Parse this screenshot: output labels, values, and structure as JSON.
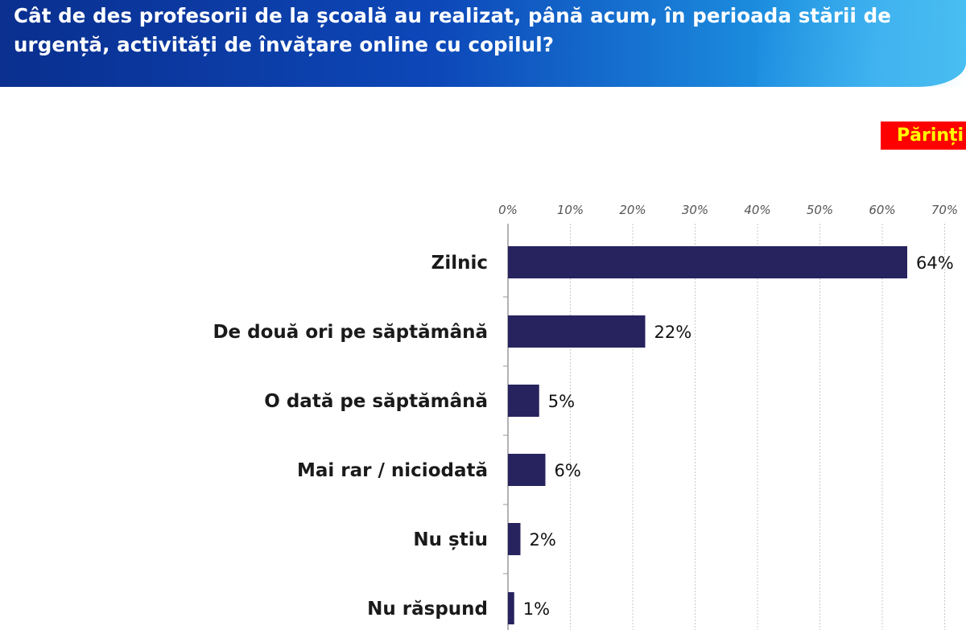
{
  "header": {
    "title": "Cât de des profesorii de la școală au realizat, până acum, în perioada stării de urgență, activități de învățare online cu copilul?"
  },
  "badge": {
    "label": "Părinți"
  },
  "colors": {
    "bar": "#26235e",
    "header_start": "#0a2f8f",
    "header_end": "#29b3ee",
    "badge_bg": "#ff0000",
    "badge_text": "#ffff00"
  },
  "chart_data": {
    "type": "bar",
    "orientation": "horizontal",
    "categories": [
      "Zilnic",
      "De două ori pe săptămână",
      "O dată pe săptămână",
      "Mai rar / niciodată",
      "Nu știu",
      "Nu răspund"
    ],
    "values": [
      64,
      22,
      5,
      6,
      2,
      1
    ],
    "value_labels": [
      "64%",
      "22%",
      "5%",
      "6%",
      "2%",
      "1%"
    ],
    "xlim": [
      0,
      70
    ],
    "x_ticks": [
      "0%",
      "10%",
      "20%",
      "30%",
      "40%",
      "50%",
      "60%",
      "70%"
    ],
    "grid": true,
    "axis_position": "top"
  }
}
